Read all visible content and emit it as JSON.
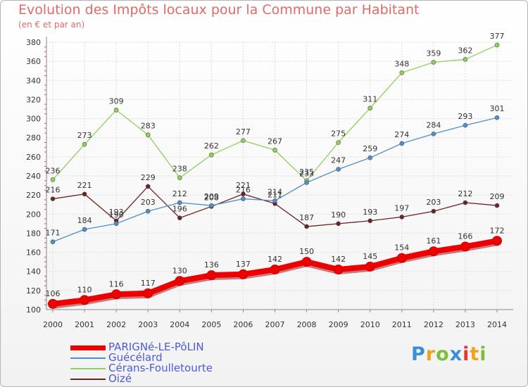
{
  "title": "Evolution des Impôts locaux pour la Commune par Habitant",
  "subtitle": "(en € et par an)",
  "logo": {
    "text": "Proxiti",
    "letters": [
      {
        "ch": "P",
        "color": "#3b8fd6"
      },
      {
        "ch": "r",
        "color": "#f0a320"
      },
      {
        "ch": "o",
        "color": "#7bbf3a"
      },
      {
        "ch": "x",
        "color": "#3b8fd6"
      },
      {
        "ch": "i",
        "color": "#e2382f"
      },
      {
        "ch": "t",
        "color": "#f0a320"
      },
      {
        "ch": "i",
        "color": "#7bbf3a"
      }
    ]
  },
  "chart_data": {
    "type": "line",
    "title": "Evolution des Impôts locaux pour la Commune par Habitant",
    "subtitle": "(en € et par an)",
    "x": [
      "2000",
      "2001",
      "2002",
      "2003",
      "2004",
      "2005",
      "2006",
      "2007",
      "2008",
      "2009",
      "2010",
      "2011",
      "2012",
      "2013",
      "2014"
    ],
    "ylim": [
      100,
      380
    ],
    "yticks": [
      100,
      120,
      140,
      160,
      180,
      200,
      220,
      240,
      260,
      280,
      300,
      320,
      340,
      360,
      380
    ],
    "grid": true,
    "legend_position": "bottom-left",
    "series": [
      {
        "name": "PARIGNé-LE-PôLIN",
        "color": "#ee0000",
        "values": [
          106,
          110,
          116,
          117,
          130,
          136,
          137,
          142,
          150,
          142,
          145,
          154,
          161,
          166,
          172
        ]
      },
      {
        "name": "Guécélard",
        "color": "#4f8fcb",
        "values": [
          171,
          184,
          190,
          203,
          212,
          209,
          216,
          214,
          233,
          247,
          259,
          274,
          284,
          293,
          301
        ]
      },
      {
        "name": "Cérans-Foulletourte",
        "color": "#8fd15a",
        "values": [
          236,
          273,
          309,
          283,
          238,
          262,
          277,
          267,
          235,
          275,
          311,
          348,
          359,
          362,
          377
        ]
      },
      {
        "name": "Oizé",
        "color": "#6b2222",
        "values": [
          216,
          221,
          193,
          229,
          196,
          208,
          221,
          211,
          187,
          190,
          193,
          197,
          203,
          212,
          209
        ]
      }
    ]
  }
}
